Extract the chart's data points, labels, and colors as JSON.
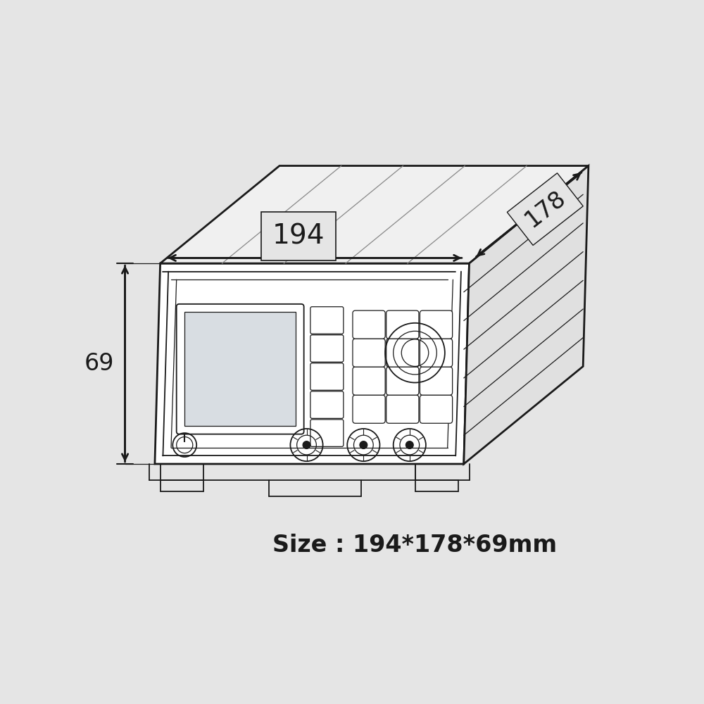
{
  "bg_color": "#e5e5e5",
  "line_color": "#1a1a1a",
  "size_text": "Size : 194*178*69mm",
  "dim_194": "194",
  "dim_178": "178",
  "dim_69": "69",
  "size_fontsize": 24,
  "dim_fontsize": 22,
  "lw_main": 2.0,
  "lw_detail": 1.3,
  "lw_thin": 0.9
}
